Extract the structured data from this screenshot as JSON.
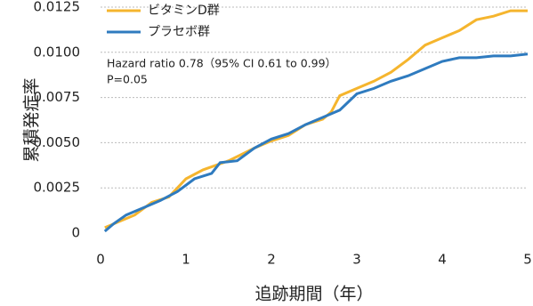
{
  "chart_data": {
    "type": "line",
    "ylabel": "累積発症率",
    "xlabel": "追跡期間（年）",
    "annotations": [
      "Hazard ratio 0.78（95% CI 0.61 to 0.99）",
      "P=0.05"
    ],
    "xlim": [
      0,
      5
    ],
    "xticks": [
      0,
      1,
      2,
      3,
      4,
      5
    ],
    "ylim": [
      0,
      0.0125
    ],
    "yticks": [
      0,
      0.0025,
      {
        "value": 0.005,
        "label": "0.0050"
      },
      0.0075,
      {
        "value": 0.01,
        "label": "0.0100"
      },
      0.0125
    ],
    "grid": true,
    "legend": "upper left",
    "series": [
      {
        "name": "ビタミンD群",
        "color": "#f5b52e",
        "x": [
          0.05,
          0.2,
          0.4,
          0.6,
          0.8,
          1.0,
          1.2,
          1.5,
          1.8,
          2.0,
          2.2,
          2.4,
          2.6,
          2.7,
          2.8,
          3.0,
          3.2,
          3.4,
          3.6,
          3.8,
          4.0,
          4.2,
          4.4,
          4.6,
          4.8,
          5.0
        ],
        "values": [
          0.0003,
          0.0006,
          0.001,
          0.0017,
          0.002,
          0.003,
          0.0035,
          0.004,
          0.0047,
          0.0051,
          0.0054,
          0.006,
          0.0063,
          0.0067,
          0.0076,
          0.008,
          0.0084,
          0.0089,
          0.0096,
          0.0104,
          0.0108,
          0.0112,
          0.0118,
          0.012,
          0.0123,
          0.0123
        ]
      },
      {
        "name": "プラセボ群",
        "color": "#2f7bbf",
        "x": [
          0.05,
          0.15,
          0.3,
          0.5,
          0.7,
          0.9,
          1.1,
          1.3,
          1.4,
          1.6,
          1.8,
          2.0,
          2.2,
          2.4,
          2.6,
          2.8,
          3.0,
          3.2,
          3.4,
          3.6,
          3.8,
          4.0,
          4.2,
          4.4,
          4.6,
          4.8,
          5.0
        ],
        "values": [
          0.0001,
          0.0005,
          0.001,
          0.0014,
          0.0018,
          0.0023,
          0.003,
          0.0033,
          0.0039,
          0.004,
          0.0047,
          0.0052,
          0.0055,
          0.006,
          0.0064,
          0.0068,
          0.0077,
          0.008,
          0.0084,
          0.0087,
          0.0091,
          0.0095,
          0.0097,
          0.0097,
          0.0098,
          0.0098,
          0.0099
        ]
      }
    ]
  }
}
